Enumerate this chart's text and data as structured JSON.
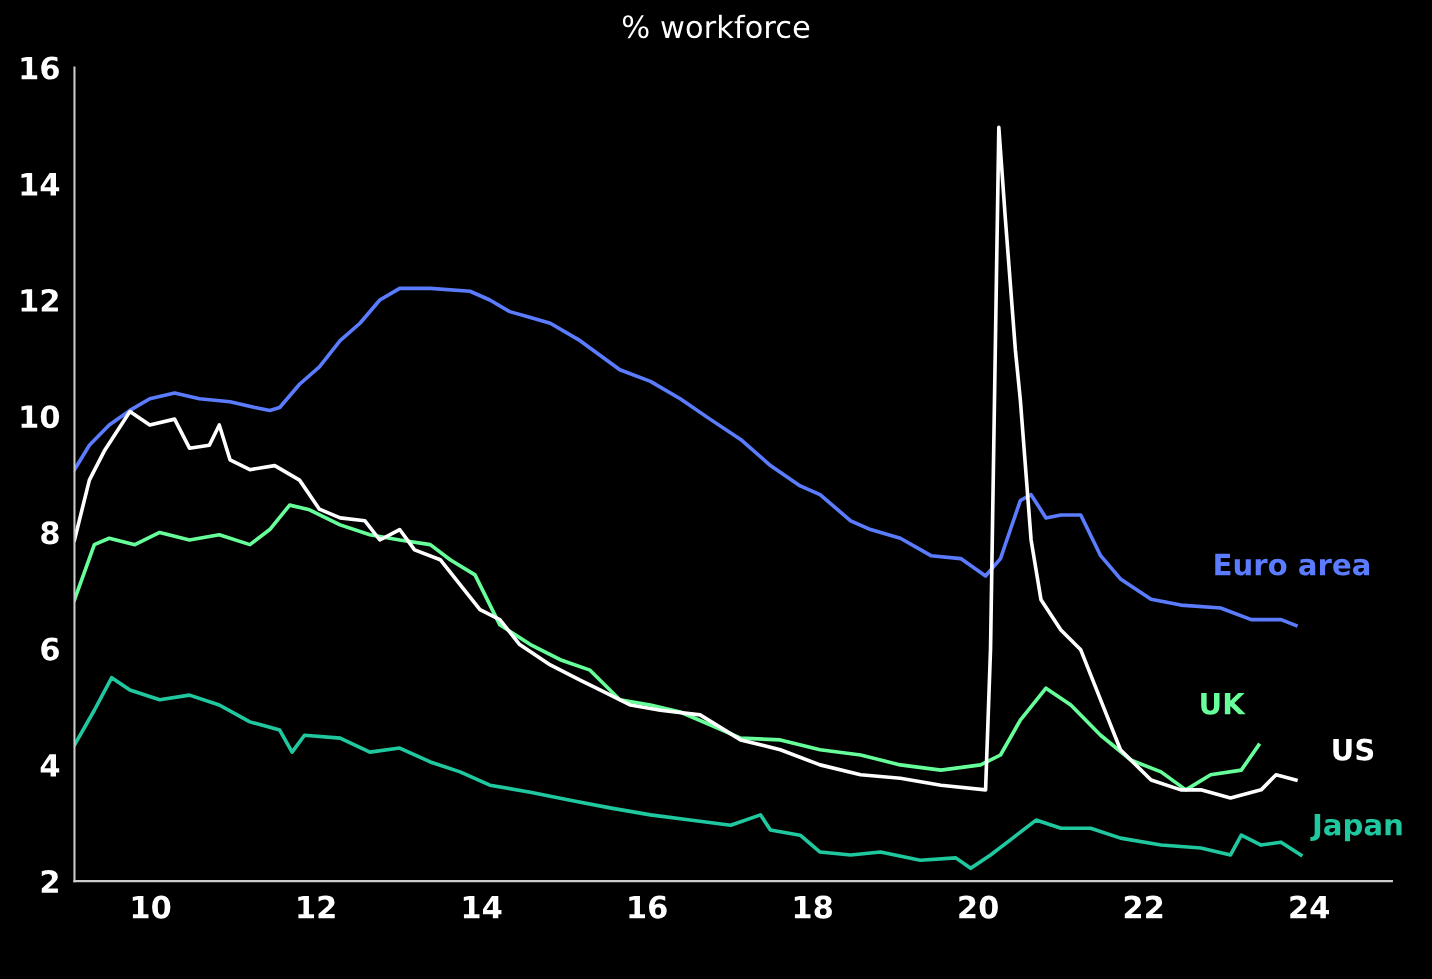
{
  "chart_data": {
    "type": "line",
    "title": "% workforce",
    "xlim": [
      9.08,
      25
    ],
    "xticks": [
      10,
      12,
      14,
      16,
      18,
      20,
      22,
      24
    ],
    "ylim": [
      2,
      16
    ],
    "yticks": [
      2,
      4,
      6,
      8,
      10,
      12,
      14,
      16
    ],
    "grid": false,
    "legend": false,
    "marker": "none",
    "line_style": "solid",
    "series": [
      {
        "name": "Euro area",
        "color": "#5b7cff",
        "x": [
          9.08,
          9.26,
          9.5,
          9.75,
          9.99,
          10.29,
          10.59,
          10.96,
          11.26,
          11.44,
          11.56,
          11.8,
          12.04,
          12.29,
          12.53,
          12.77,
          13.01,
          13.38,
          13.86,
          14.1,
          14.34,
          14.59,
          14.83,
          15.19,
          15.43,
          15.67,
          16.04,
          16.4,
          16.76,
          17.13,
          17.49,
          17.85,
          18.09,
          18.46,
          18.7,
          19.06,
          19.43,
          19.79,
          20.09,
          20.27,
          20.39,
          20.51,
          20.64,
          20.82,
          21.0,
          21.24,
          21.48,
          21.72,
          22.09,
          22.45,
          22.93,
          23.3,
          23.66,
          23.84
        ],
        "values": [
          9.08,
          9.5,
          9.85,
          10.1,
          10.3,
          10.4,
          10.3,
          10.25,
          10.15,
          10.1,
          10.15,
          10.55,
          10.85,
          11.3,
          11.6,
          12.0,
          12.2,
          12.2,
          12.15,
          12.0,
          11.8,
          11.7,
          11.6,
          11.3,
          11.05,
          10.8,
          10.6,
          10.3,
          9.95,
          9.6,
          9.15,
          8.8,
          8.65,
          8.2,
          8.05,
          7.9,
          7.6,
          7.55,
          7.25,
          7.55,
          8.05,
          8.55,
          8.65,
          8.25,
          8.3,
          8.3,
          7.6,
          7.2,
          6.85,
          6.75,
          6.7,
          6.5,
          6.5,
          6.4
        ]
      },
      {
        "name": "UK",
        "color": "#66ff99",
        "x": [
          9.08,
          9.32,
          9.5,
          9.81,
          10.11,
          10.47,
          10.83,
          11.2,
          11.44,
          11.68,
          11.92,
          12.29,
          12.65,
          13.01,
          13.38,
          13.62,
          13.92,
          14.22,
          14.59,
          14.95,
          15.31,
          15.67,
          16.04,
          16.4,
          16.76,
          17.13,
          17.61,
          18.09,
          18.58,
          19.06,
          19.55,
          20.03,
          20.27,
          20.51,
          20.82,
          21.12,
          21.48,
          21.85,
          22.21,
          22.51,
          22.81,
          23.18,
          23.39
        ],
        "values": [
          6.84,
          7.79,
          7.9,
          7.79,
          8.0,
          7.87,
          7.96,
          7.79,
          8.05,
          8.47,
          8.39,
          8.13,
          7.96,
          7.87,
          7.79,
          7.53,
          7.27,
          6.41,
          6.07,
          5.81,
          5.63,
          5.12,
          5.03,
          4.91,
          4.69,
          4.46,
          4.43,
          4.26,
          4.17,
          4.0,
          3.91,
          4.0,
          4.17,
          4.77,
          5.32,
          5.03,
          4.51,
          4.08,
          3.88,
          3.57,
          3.83,
          3.91,
          4.34
        ]
      },
      {
        "name": "US",
        "color": "#ffffff",
        "x": [
          9.08,
          9.26,
          9.44,
          9.75,
          9.99,
          10.29,
          10.47,
          10.71,
          10.83,
          10.96,
          11.2,
          11.5,
          11.8,
          12.04,
          12.29,
          12.59,
          12.77,
          13.01,
          13.19,
          13.5,
          13.74,
          13.98,
          14.22,
          14.46,
          14.83,
          15.19,
          15.43,
          15.8,
          16.16,
          16.64,
          17.13,
          17.61,
          18.09,
          18.58,
          19.06,
          19.55,
          20.09,
          20.15,
          20.25,
          20.33,
          20.45,
          20.51,
          20.64,
          20.76,
          21.0,
          21.24,
          21.48,
          21.72,
          22.09,
          22.45,
          22.69,
          23.05,
          23.42,
          23.6,
          23.84
        ],
        "values": [
          7.87,
          8.9,
          9.4,
          10.08,
          9.85,
          9.95,
          9.45,
          9.5,
          9.85,
          9.25,
          9.08,
          9.15,
          8.9,
          8.4,
          8.25,
          8.2,
          7.87,
          8.05,
          7.7,
          7.53,
          7.1,
          6.67,
          6.5,
          6.07,
          5.72,
          5.46,
          5.29,
          5.03,
          4.94,
          4.86,
          4.43,
          4.26,
          4.0,
          3.83,
          3.77,
          3.65,
          3.57,
          6.0,
          14.97,
          13.38,
          11.14,
          10.28,
          7.87,
          6.84,
          6.32,
          5.98,
          5.12,
          4.26,
          3.74,
          3.57,
          3.57,
          3.43,
          3.57,
          3.83,
          3.74
        ]
      },
      {
        "name": "Japan",
        "color": "#20c8a0",
        "x": [
          9.08,
          9.32,
          9.53,
          9.75,
          10.11,
          10.47,
          10.83,
          11.2,
          11.56,
          11.71,
          11.86,
          12.29,
          12.65,
          13.01,
          13.38,
          13.74,
          14.1,
          14.59,
          15.07,
          15.55,
          16.04,
          16.52,
          17.01,
          17.37,
          17.49,
          17.85,
          18.09,
          18.46,
          18.82,
          19.3,
          19.73,
          19.91,
          20.15,
          20.39,
          20.7,
          21.0,
          21.36,
          21.72,
          22.21,
          22.69,
          23.05,
          23.18,
          23.42,
          23.66,
          23.9
        ],
        "values": [
          4.34,
          4.94,
          5.5,
          5.29,
          5.12,
          5.2,
          5.03,
          4.74,
          4.6,
          4.22,
          4.51,
          4.46,
          4.22,
          4.29,
          4.05,
          3.88,
          3.65,
          3.53,
          3.39,
          3.26,
          3.14,
          3.05,
          2.96,
          3.14,
          2.88,
          2.79,
          2.5,
          2.45,
          2.5,
          2.36,
          2.4,
          2.22,
          2.45,
          2.71,
          3.05,
          2.91,
          2.91,
          2.74,
          2.62,
          2.57,
          2.45,
          2.79,
          2.62,
          2.67,
          2.45
        ]
      }
    ]
  }
}
